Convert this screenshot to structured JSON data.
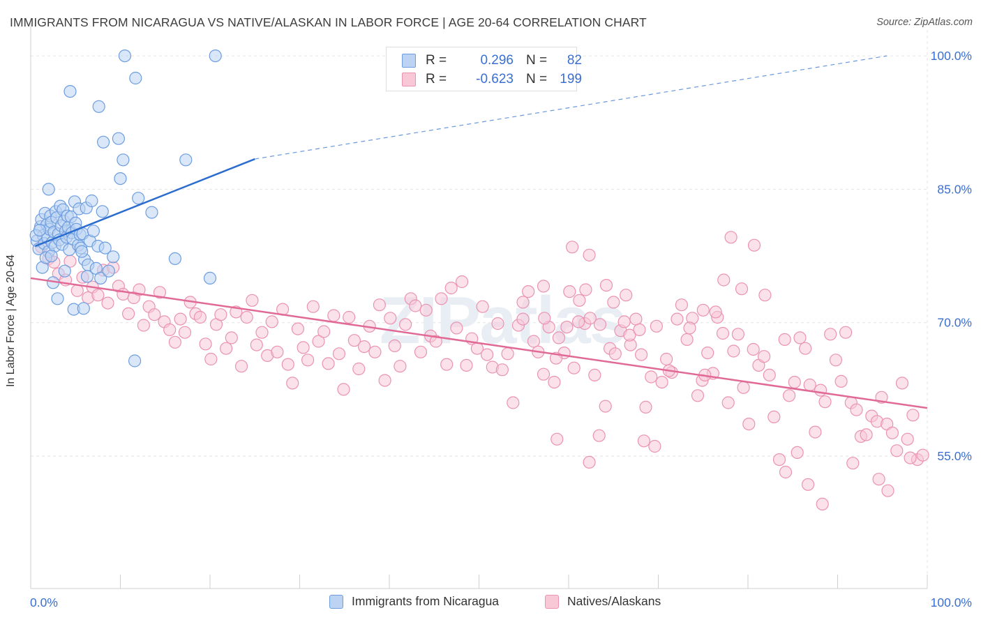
{
  "header": {
    "title": "IMMIGRANTS FROM NICARAGUA VS NATIVE/ALASKAN IN LABOR FORCE | AGE 20-64 CORRELATION CHART",
    "source": "Source: ZipAtlas.com"
  },
  "legend": {
    "rows": [
      {
        "r_label": "R =",
        "r_value": "0.296",
        "n_label": "N =",
        "n_value": "82"
      },
      {
        "r_label": "R =",
        "r_value": "-0.623",
        "n_label": "N =",
        "n_value": "199"
      }
    ]
  },
  "colors": {
    "blue_fill": "#bcd3f3",
    "blue_stroke": "#6d9de0",
    "blue_line": "#2b6ccf",
    "pink_fill": "#f8c8d7",
    "pink_stroke": "#ea93b1",
    "pink_line": "#e06a95",
    "tick_text": "#3a6fd1",
    "grid": "#e3e3e3"
  },
  "chart_data": {
    "type": "scatter",
    "title": "IMMIGRANTS FROM NICARAGUA VS NATIVE/ALASKAN IN LABOR FORCE | AGE 20-64 CORRELATION CHART",
    "xlabel": "",
    "ylabel": "In Labor Force | Age 20-64",
    "xlim": [
      0,
      100
    ],
    "ylim": [
      40,
      105
    ],
    "x_tick_labels": [
      "0.0%",
      "100.0%"
    ],
    "y_ticks": [
      55,
      70,
      85,
      100
    ],
    "y_tick_labels": [
      "55.0%",
      "70.0%",
      "85.0%",
      "100.0%"
    ],
    "grid": true,
    "legend_position": "bottom-center",
    "watermark": "ZIPatlas",
    "series": [
      {
        "name": "Immigrants from Nicaragua",
        "color": "#6d9de0",
        "r": 0.296,
        "n": 82,
        "trend": {
          "x": [
            0.5,
            25
          ],
          "y": [
            78.6,
            88.4
          ],
          "dashed_to": [
            95.5,
            100
          ]
        },
        "points": [
          [
            0.7,
            79.2
          ],
          [
            0.9,
            78.3
          ],
          [
            1.1,
            80.8
          ],
          [
            1.2,
            81.6
          ],
          [
            1.4,
            79.8
          ],
          [
            1.5,
            78.9
          ],
          [
            1.6,
            82.3
          ],
          [
            1.8,
            81.0
          ],
          [
            1.9,
            79.5
          ],
          [
            2.0,
            78.0
          ],
          [
            2.1,
            80.5
          ],
          [
            2.2,
            82.0
          ],
          [
            2.3,
            81.3
          ],
          [
            2.4,
            79.0
          ],
          [
            2.6,
            80.2
          ],
          [
            2.7,
            78.6
          ],
          [
            2.8,
            82.5
          ],
          [
            2.9,
            81.8
          ],
          [
            3.1,
            80.0
          ],
          [
            3.2,
            79.3
          ],
          [
            3.3,
            83.1
          ],
          [
            3.4,
            80.9
          ],
          [
            3.5,
            78.8
          ],
          [
            3.6,
            82.7
          ],
          [
            3.7,
            81.4
          ],
          [
            3.9,
            80.3
          ],
          [
            4.0,
            79.6
          ],
          [
            4.1,
            82.0
          ],
          [
            4.2,
            80.7
          ],
          [
            4.3,
            78.2
          ],
          [
            4.5,
            81.9
          ],
          [
            4.6,
            80.1
          ],
          [
            4.7,
            79.4
          ],
          [
            4.9,
            83.6
          ],
          [
            5.0,
            81.2
          ],
          [
            5.1,
            80.5
          ],
          [
            5.3,
            78.7
          ],
          [
            5.4,
            82.8
          ],
          [
            5.5,
            79.9
          ],
          [
            5.6,
            78.4
          ],
          [
            5.8,
            80.0
          ],
          [
            6.0,
            77.1
          ],
          [
            6.2,
            82.9
          ],
          [
            6.4,
            76.5
          ],
          [
            6.6,
            79.2
          ],
          [
            6.8,
            83.7
          ],
          [
            7.0,
            80.3
          ],
          [
            7.3,
            76.1
          ],
          [
            7.5,
            78.6
          ],
          [
            7.8,
            75.0
          ],
          [
            8.0,
            82.5
          ],
          [
            8.3,
            78.4
          ],
          [
            1.3,
            76.2
          ],
          [
            2.5,
            74.5
          ],
          [
            3.0,
            72.7
          ],
          [
            4.8,
            71.5
          ],
          [
            5.9,
            71.6
          ],
          [
            9.2,
            77.4
          ],
          [
            11.6,
            65.7
          ],
          [
            0.6,
            79.8
          ],
          [
            1.0,
            80.4
          ],
          [
            1.7,
            77.3
          ],
          [
            2.0,
            85.0
          ],
          [
            4.4,
            96.0
          ],
          [
            7.6,
            94.3
          ],
          [
            8.1,
            90.3
          ],
          [
            9.8,
            90.7
          ],
          [
            10.3,
            88.3
          ],
          [
            10.0,
            86.2
          ],
          [
            10.5,
            100.0
          ],
          [
            11.7,
            97.5
          ],
          [
            20.6,
            100.0
          ],
          [
            17.3,
            88.3
          ],
          [
            16.1,
            77.2
          ],
          [
            8.7,
            75.8
          ],
          [
            5.7,
            78.0
          ],
          [
            3.8,
            75.8
          ],
          [
            2.3,
            77.5
          ],
          [
            12.0,
            84.0
          ],
          [
            13.5,
            82.4
          ],
          [
            20.0,
            75.0
          ],
          [
            6.3,
            75.2
          ]
        ]
      },
      {
        "name": "Natives/Alaskans",
        "color": "#ea93b1",
        "r": -0.623,
        "n": 199,
        "trend": {
          "x": [
            0,
            100
          ],
          "y": [
            75.0,
            60.4
          ]
        },
        "points": [
          [
            1.2,
            78.5
          ],
          [
            2.0,
            77.2
          ],
          [
            2.6,
            76.8
          ],
          [
            3.1,
            75.5
          ],
          [
            3.9,
            74.8
          ],
          [
            4.4,
            76.9
          ],
          [
            5.2,
            73.6
          ],
          [
            5.8,
            75.1
          ],
          [
            6.4,
            72.8
          ],
          [
            6.9,
            74.0
          ],
          [
            7.5,
            73.1
          ],
          [
            8.1,
            75.9
          ],
          [
            8.6,
            72.2
          ],
          [
            9.2,
            76.2
          ],
          [
            9.8,
            74.1
          ],
          [
            10.3,
            73.2
          ],
          [
            10.9,
            71.0
          ],
          [
            11.5,
            72.8
          ],
          [
            12.1,
            73.7
          ],
          [
            12.6,
            69.7
          ],
          [
            13.2,
            71.8
          ],
          [
            13.8,
            70.9
          ],
          [
            14.4,
            73.4
          ],
          [
            14.9,
            70.1
          ],
          [
            15.5,
            69.2
          ],
          [
            16.1,
            67.8
          ],
          [
            16.7,
            70.4
          ],
          [
            17.2,
            68.9
          ],
          [
            17.8,
            72.3
          ],
          [
            18.4,
            71.0
          ],
          [
            18.9,
            70.6
          ],
          [
            19.5,
            67.6
          ],
          [
            20.1,
            65.9
          ],
          [
            20.7,
            69.8
          ],
          [
            21.2,
            70.9
          ],
          [
            21.8,
            67.1
          ],
          [
            22.4,
            68.3
          ],
          [
            22.9,
            71.2
          ],
          [
            23.5,
            65.1
          ],
          [
            24.1,
            70.6
          ],
          [
            24.7,
            72.5
          ],
          [
            25.2,
            67.5
          ],
          [
            25.8,
            68.9
          ],
          [
            26.4,
            66.3
          ],
          [
            26.9,
            70.1
          ],
          [
            27.5,
            66.7
          ],
          [
            28.1,
            71.5
          ],
          [
            28.7,
            65.3
          ],
          [
            29.2,
            63.2
          ],
          [
            29.8,
            69.3
          ],
          [
            30.4,
            67.2
          ],
          [
            30.9,
            65.8
          ],
          [
            31.5,
            71.8
          ],
          [
            32.1,
            67.9
          ],
          [
            32.7,
            69.0
          ],
          [
            33.2,
            65.4
          ],
          [
            33.8,
            70.8
          ],
          [
            34.4,
            66.5
          ],
          [
            34.9,
            62.5
          ],
          [
            35.5,
            70.6
          ],
          [
            36.1,
            68.0
          ],
          [
            36.6,
            64.8
          ],
          [
            37.2,
            67.3
          ],
          [
            37.8,
            69.6
          ],
          [
            38.4,
            66.7
          ],
          [
            38.9,
            72.0
          ],
          [
            39.5,
            63.5
          ],
          [
            40.1,
            70.5
          ],
          [
            40.6,
            67.4
          ],
          [
            41.2,
            65.1
          ],
          [
            41.8,
            69.8
          ],
          [
            42.4,
            72.7
          ],
          [
            42.9,
            71.9
          ],
          [
            43.5,
            66.7
          ],
          [
            44.1,
            71.4
          ],
          [
            44.6,
            68.5
          ],
          [
            45.2,
            67.9
          ],
          [
            45.8,
            72.7
          ],
          [
            46.4,
            65.3
          ],
          [
            46.9,
            73.9
          ],
          [
            47.5,
            69.4
          ],
          [
            48.1,
            74.6
          ],
          [
            48.6,
            65.2
          ],
          [
            49.2,
            68.2
          ],
          [
            49.8,
            67.1
          ],
          [
            50.4,
            71.8
          ],
          [
            50.9,
            66.4
          ],
          [
            51.5,
            65.0
          ],
          [
            52.1,
            69.9
          ],
          [
            52.6,
            64.7
          ],
          [
            53.2,
            66.5
          ],
          [
            53.8,
            61.0
          ],
          [
            54.4,
            69.7
          ],
          [
            54.9,
            70.4
          ],
          [
            55.5,
            73.5
          ],
          [
            56.1,
            67.9
          ],
          [
            56.6,
            66.7
          ],
          [
            57.2,
            64.2
          ],
          [
            57.8,
            69.5
          ],
          [
            58.4,
            63.3
          ],
          [
            58.9,
            68.3
          ],
          [
            59.5,
            66.6
          ],
          [
            60.1,
            73.5
          ],
          [
            60.6,
            64.9
          ],
          [
            61.2,
            72.5
          ],
          [
            61.8,
            69.9
          ],
          [
            62.4,
            70.5
          ],
          [
            62.9,
            64.1
          ],
          [
            63.5,
            69.8
          ],
          [
            64.1,
            60.6
          ],
          [
            64.6,
            67.1
          ],
          [
            65.2,
            66.5
          ],
          [
            65.8,
            69.1
          ],
          [
            66.4,
            73.1
          ],
          [
            66.9,
            67.5
          ],
          [
            67.5,
            70.4
          ],
          [
            68.1,
            66.4
          ],
          [
            68.6,
            60.5
          ],
          [
            69.2,
            63.9
          ],
          [
            69.8,
            69.6
          ],
          [
            70.4,
            63.3
          ],
          [
            70.9,
            65.9
          ],
          [
            71.5,
            64.4
          ],
          [
            72.1,
            70.4
          ],
          [
            72.6,
            72.0
          ],
          [
            73.2,
            68.1
          ],
          [
            73.8,
            70.5
          ],
          [
            74.4,
            61.8
          ],
          [
            74.9,
            63.5
          ],
          [
            75.5,
            66.6
          ],
          [
            76.1,
            64.3
          ],
          [
            76.6,
            70.6
          ],
          [
            77.2,
            68.8
          ],
          [
            77.8,
            61.0
          ],
          [
            78.4,
            66.8
          ],
          [
            78.9,
            68.7
          ],
          [
            79.5,
            62.7
          ],
          [
            80.1,
            58.6
          ],
          [
            80.6,
            67.0
          ],
          [
            81.2,
            65.2
          ],
          [
            81.8,
            66.2
          ],
          [
            82.4,
            64.1
          ],
          [
            82.9,
            59.4
          ],
          [
            83.5,
            54.6
          ],
          [
            84.1,
            68.1
          ],
          [
            84.6,
            61.8
          ],
          [
            85.2,
            63.3
          ],
          [
            85.8,
            68.3
          ],
          [
            86.4,
            67.1
          ],
          [
            86.9,
            63.0
          ],
          [
            87.5,
            57.7
          ],
          [
            88.1,
            62.4
          ],
          [
            88.6,
            61.1
          ],
          [
            89.2,
            68.7
          ],
          [
            89.8,
            65.8
          ],
          [
            90.4,
            63.4
          ],
          [
            90.9,
            68.9
          ],
          [
            91.5,
            61.0
          ],
          [
            92.1,
            60.2
          ],
          [
            92.6,
            57.2
          ],
          [
            93.2,
            57.4
          ],
          [
            93.8,
            59.5
          ],
          [
            94.4,
            58.9
          ],
          [
            94.9,
            61.6
          ],
          [
            95.5,
            58.6
          ],
          [
            96.1,
            57.6
          ],
          [
            96.6,
            55.6
          ],
          [
            97.2,
            63.2
          ],
          [
            97.8,
            56.9
          ],
          [
            98.4,
            59.6
          ],
          [
            98.9,
            54.6
          ],
          [
            99.5,
            55.1
          ],
          [
            85.5,
            55.4
          ],
          [
            84.2,
            53.2
          ],
          [
            86.7,
            51.8
          ],
          [
            88.3,
            49.6
          ],
          [
            91.7,
            54.2
          ],
          [
            94.6,
            52.4
          ],
          [
            95.6,
            51.1
          ],
          [
            98.1,
            54.8
          ],
          [
            77.3,
            74.8
          ],
          [
            78.1,
            79.6
          ],
          [
            79.3,
            73.8
          ],
          [
            80.7,
            78.7
          ],
          [
            81.9,
            73.1
          ],
          [
            58.6,
            66.0
          ],
          [
            58.7,
            56.9
          ],
          [
            62.3,
            54.3
          ],
          [
            63.4,
            57.3
          ],
          [
            68.4,
            56.7
          ],
          [
            69.6,
            56.1
          ],
          [
            71.2,
            64.6
          ],
          [
            73.5,
            69.4
          ],
          [
            75.0,
            71.4
          ],
          [
            76.4,
            71.2
          ],
          [
            60.4,
            78.5
          ],
          [
            62.3,
            77.6
          ],
          [
            64.2,
            74.2
          ],
          [
            65.0,
            72.3
          ],
          [
            66.8,
            68.6
          ],
          [
            57.2,
            74.1
          ],
          [
            57.3,
            70.5
          ],
          [
            54.9,
            72.3
          ],
          [
            59.8,
            69.5
          ],
          [
            61.1,
            70.1
          ],
          [
            61.9,
            73.7
          ],
          [
            66.2,
            70.1
          ],
          [
            67.9,
            69.2
          ],
          [
            75.2,
            64.1
          ]
        ]
      }
    ]
  },
  "bottom_legend": [
    {
      "label": "Immigrants from Nicaragua"
    },
    {
      "label": "Natives/Alaskans"
    }
  ]
}
